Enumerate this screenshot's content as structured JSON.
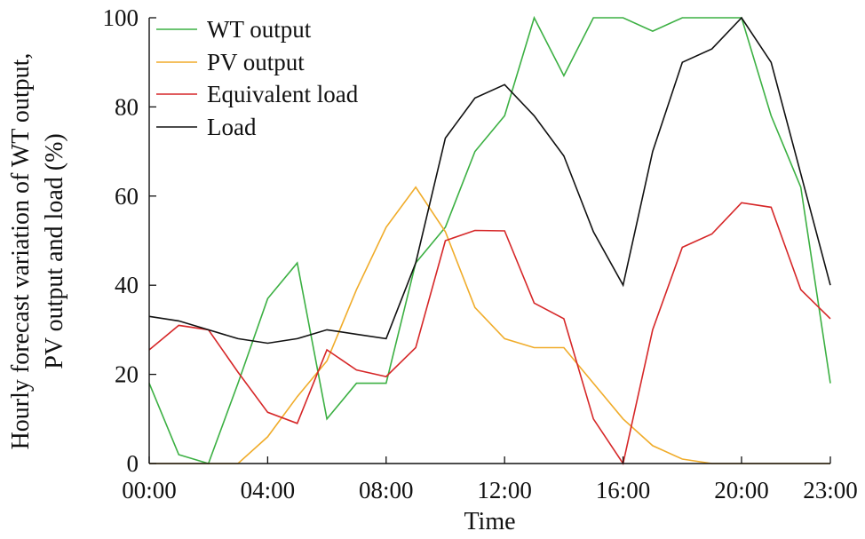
{
  "chart_data": {
    "type": "line",
    "xlabel": "Time",
    "ylabel_lines": [
      "Hourly forecast variation of WT output,",
      "PV output and load (%)"
    ],
    "x_ticks": [
      "00:00",
      "04:00",
      "08:00",
      "12:00",
      "16:00",
      "20:00",
      "23:00"
    ],
    "y_ticks": [
      "0",
      "20",
      "40",
      "60",
      "80",
      "100"
    ],
    "ylim": [
      0,
      100
    ],
    "xlim": [
      0,
      23
    ],
    "legend_position": "top-left",
    "grid": false,
    "x": [
      0,
      1,
      2,
      3,
      4,
      5,
      6,
      7,
      8,
      9,
      10,
      11,
      12,
      13,
      14,
      15,
      16,
      17,
      18,
      19,
      20,
      21,
      22,
      23
    ],
    "series": [
      {
        "name": "WT output",
        "color": "#3cb043",
        "values": [
          18,
          2,
          0,
          18,
          37,
          45,
          10,
          18,
          18,
          45,
          53,
          70,
          78,
          100,
          87,
          100,
          100,
          97,
          100,
          100,
          100,
          78,
          62,
          18
        ]
      },
      {
        "name": "PV output",
        "color": "#f0ac2a",
        "values": [
          0,
          0,
          0,
          0,
          6,
          15,
          23,
          39,
          53,
          62,
          52,
          35,
          28,
          26,
          26,
          18,
          10,
          4,
          1,
          0,
          0,
          0,
          0,
          0
        ]
      },
      {
        "name": "Equivalent load",
        "color": "#d62728",
        "values": [
          25.5,
          31,
          30,
          20.5,
          11.5,
          9,
          25.5,
          21,
          19.5,
          26,
          50,
          52.3,
          52.2,
          36,
          32.5,
          10,
          0,
          30,
          48.5,
          51.5,
          58.5,
          57.5,
          39,
          32.5
        ]
      },
      {
        "name": "Load",
        "color": "#111111",
        "values": [
          33,
          32,
          30,
          28,
          27,
          28,
          30,
          29,
          28,
          45,
          73,
          82,
          85,
          78,
          69,
          52,
          40,
          70,
          90,
          93,
          100,
          90,
          65,
          40
        ]
      }
    ]
  }
}
